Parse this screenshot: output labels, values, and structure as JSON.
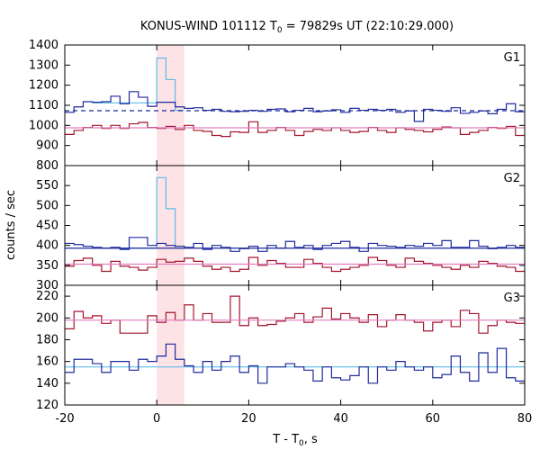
{
  "chart_data": {
    "type": "line",
    "title": "KONUS-WIND 101112 T0 = 79829s UT (22:10:29.000)",
    "title_parts": {
      "prefix": "KONUS-WIND 101112 T",
      "subscript": "0",
      "suffix": " = 79829s UT (22:10:29.000)"
    },
    "xlabel": "T - T0, s",
    "xlabel_parts": {
      "prefix": "T - T",
      "subscript": "0",
      "suffix": ", s"
    },
    "ylabel": "counts / sec",
    "xlim": [
      -20,
      80
    ],
    "xticks": [
      -20,
      0,
      20,
      40,
      60,
      80
    ],
    "shaded_interval": [
      0,
      6
    ],
    "colors": {
      "burst": "#5bbde8",
      "dark_blue": "#1f2a9c",
      "dark_red": "#a3152c",
      "background_fit": "#e080c0",
      "shade": "#fde3e6"
    },
    "x_edges": [
      -20,
      -18,
      -16,
      -14,
      -12,
      -10,
      -8,
      -6,
      -4,
      -2,
      0,
      2,
      4,
      6,
      8,
      10,
      12,
      14,
      16,
      18,
      20,
      22,
      24,
      26,
      28,
      30,
      32,
      34,
      36,
      38,
      40,
      42,
      44,
      46,
      48,
      50,
      52,
      54,
      56,
      58,
      60,
      62,
      64,
      66,
      68,
      70,
      72,
      74,
      76,
      78,
      80
    ],
    "panels": [
      {
        "label": "G1",
        "ylim": [
          800,
          1400
        ],
        "yticks": [
          800,
          900,
          1000,
          1100,
          1200,
          1300,
          1400
        ],
        "series": [
          {
            "role": "burst",
            "x_range": [
              -14,
              6
            ],
            "step_width": 2,
            "values": [
              1112,
              1112,
              1112,
              1112,
              1112,
              1112,
              1112,
              1335,
              1228,
              1075
            ]
          },
          {
            "role": "dark_blue",
            "values": [
              1065,
              1092,
              1118,
              1115,
              1118,
              1145,
              1108,
              1168,
              1140,
              1095,
              1115,
              1115,
              1092,
              1085,
              1088,
              1075,
              1080,
              1070,
              1068,
              1070,
              1075,
              1070,
              1080,
              1082,
              1068,
              1075,
              1085,
              1068,
              1072,
              1078,
              1065,
              1085,
              1075,
              1080,
              1075,
              1080,
              1065,
              1072,
              1020,
              1080,
              1075,
              1070,
              1088,
              1060,
              1065,
              1072,
              1058,
              1080,
              1108,
              1068
            ]
          },
          {
            "role": "dark_red",
            "values": [
              955,
              975,
              990,
              1000,
              985,
              1000,
              985,
              1008,
              1015,
              990,
              985,
              995,
              980,
              1000,
              975,
              970,
              950,
              945,
              968,
              965,
              1018,
              965,
              975,
              990,
              975,
              950,
              970,
              980,
              975,
              988,
              975,
              965,
              970,
              990,
              975,
              965,
              988,
              980,
              975,
              968,
              980,
              992,
              988,
              955,
              965,
              975,
              990,
              985,
              995,
              950
            ]
          },
          {
            "role": "blue_fit",
            "style": "dashed",
            "value": 1073
          },
          {
            "role": "background_fit",
            "value": 988
          }
        ]
      },
      {
        "label": "G2",
        "ylim": [
          300,
          600
        ],
        "yticks": [
          300,
          350,
          400,
          450,
          500,
          550
        ],
        "series": [
          {
            "role": "burst",
            "x_range": [
              -14,
              6
            ],
            "step_width": 2,
            "values": [
              393,
              393,
              393,
              393,
              393,
              393,
              393,
              570,
              492,
              393
            ]
          },
          {
            "role": "dark_blue",
            "values": [
              405,
              402,
              398,
              395,
              393,
              395,
              390,
              420,
              420,
              400,
              405,
              400,
              398,
              395,
              405,
              390,
              400,
              395,
              385,
              392,
              398,
              385,
              400,
              393,
              410,
              395,
              400,
              390,
              400,
              405,
              410,
              395,
              385,
              405,
              400,
              398,
              395,
              400,
              398,
              405,
              400,
              412,
              395,
              395,
              412,
              398,
              392,
              395,
              400,
              395
            ]
          },
          {
            "role": "dark_red",
            "values": [
              348,
              362,
              368,
              350,
              335,
              360,
              348,
              345,
              338,
              345,
              365,
              358,
              360,
              368,
              360,
              348,
              340,
              345,
              335,
              340,
              370,
              350,
              362,
              355,
              345,
              345,
              365,
              355,
              345,
              335,
              340,
              345,
              350,
              370,
              362,
              350,
              345,
              368,
              360,
              355,
              350,
              345,
              340,
              350,
              345,
              360,
              355,
              348,
              345,
              335
            ]
          },
          {
            "role": "blue_fit",
            "style": "solid",
            "value": 393
          },
          {
            "role": "background_fit",
            "value": 353
          }
        ]
      },
      {
        "label": "G3",
        "ylim": [
          120,
          230
        ],
        "yticks": [
          120,
          140,
          160,
          180,
          200,
          220
        ],
        "series": [
          {
            "role": "dark_red",
            "values": [
              190,
              206,
              200,
              202,
              195,
              198,
              186,
              186,
              186,
              202,
              196,
              205,
              198,
              212,
              198,
              204,
              196,
              196,
              220,
              193,
              200,
              193,
              194,
              197,
              200,
              204,
              196,
              201,
              209,
              199,
              204,
              200,
              196,
              203,
              192,
              198,
              203,
              198,
              196,
              188,
              196,
              198,
              192,
              207,
              204,
              186,
              193,
              198,
              196,
              195
            ]
          },
          {
            "role": "burst",
            "x_range": [
              -20,
              80
            ],
            "step_width": 100,
            "values": [
              155
            ]
          },
          {
            "role": "dark_blue",
            "values": [
              150,
              162,
              162,
              158,
              150,
              160,
              160,
              152,
              162,
              160,
              165,
              176,
              162,
              156,
              150,
              160,
              152,
              160,
              165,
              150,
              156,
              140,
              155,
              155,
              158,
              155,
              152,
              142,
              155,
              145,
              143,
              147,
              155,
              140,
              155,
              152,
              160,
              155,
              152,
              155,
              145,
              148,
              165,
              150,
              142,
              168,
              150,
              172,
              145,
              142
            ]
          },
          {
            "role": "background_fit",
            "value": 198
          }
        ]
      }
    ]
  }
}
